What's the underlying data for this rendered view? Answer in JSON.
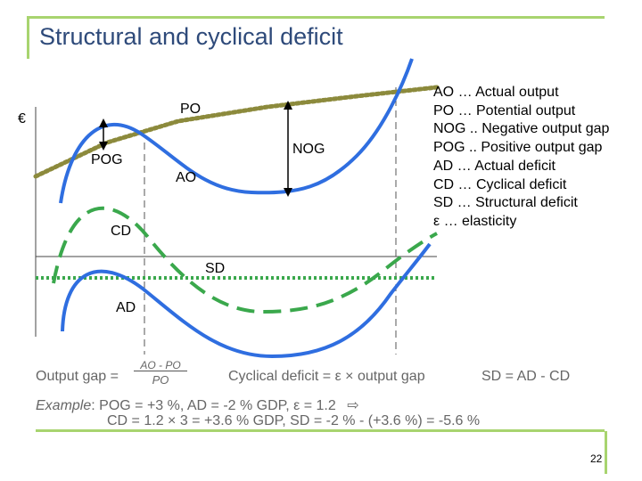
{
  "title": "Structural and cyclical deficit",
  "legend": [
    "AO …  Actual output",
    "PO …  Potential output",
    "NOG .. Negative output gap",
    "POG .. Positive output gap",
    "AD …  Actual deficit",
    "CD …  Cyclical deficit",
    "SD …  Structural deficit",
    "ε    …  elasticity"
  ],
  "diagram_labels": {
    "currency": "€",
    "po": "PO",
    "pog": "POG",
    "nog": "NOG",
    "ao": "AO",
    "cd": "CD",
    "sd": "SD",
    "ad": "AD"
  },
  "colors": {
    "title": "#2e4a7a",
    "frame": "#a8d46f",
    "actual_curve": "#2f6ee0",
    "potential_curve": "#8c8a3c",
    "cyclical_curve": "#3aa84c",
    "structural_line": "#3aa84c"
  },
  "formulas": {
    "output_gap_label": "Output gap =",
    "output_gap_numerator": "AO - PO",
    "output_gap_denominator": "PO",
    "cyclical_deficit": "Cyclical deficit = ε  × output gap",
    "structural_deficit": "SD = AD - CD",
    "example_label": "Example",
    "example_line1": ": POG = +3 %,   AD = -2 % GDP,   ε = 1.2",
    "example_arrow": "⇨",
    "example_line2": "CD = 1.2 × 3 = +3.6 % GDP,   SD = -2 % - (+3.6 %) = -5.6 %"
  },
  "page_number": "22"
}
